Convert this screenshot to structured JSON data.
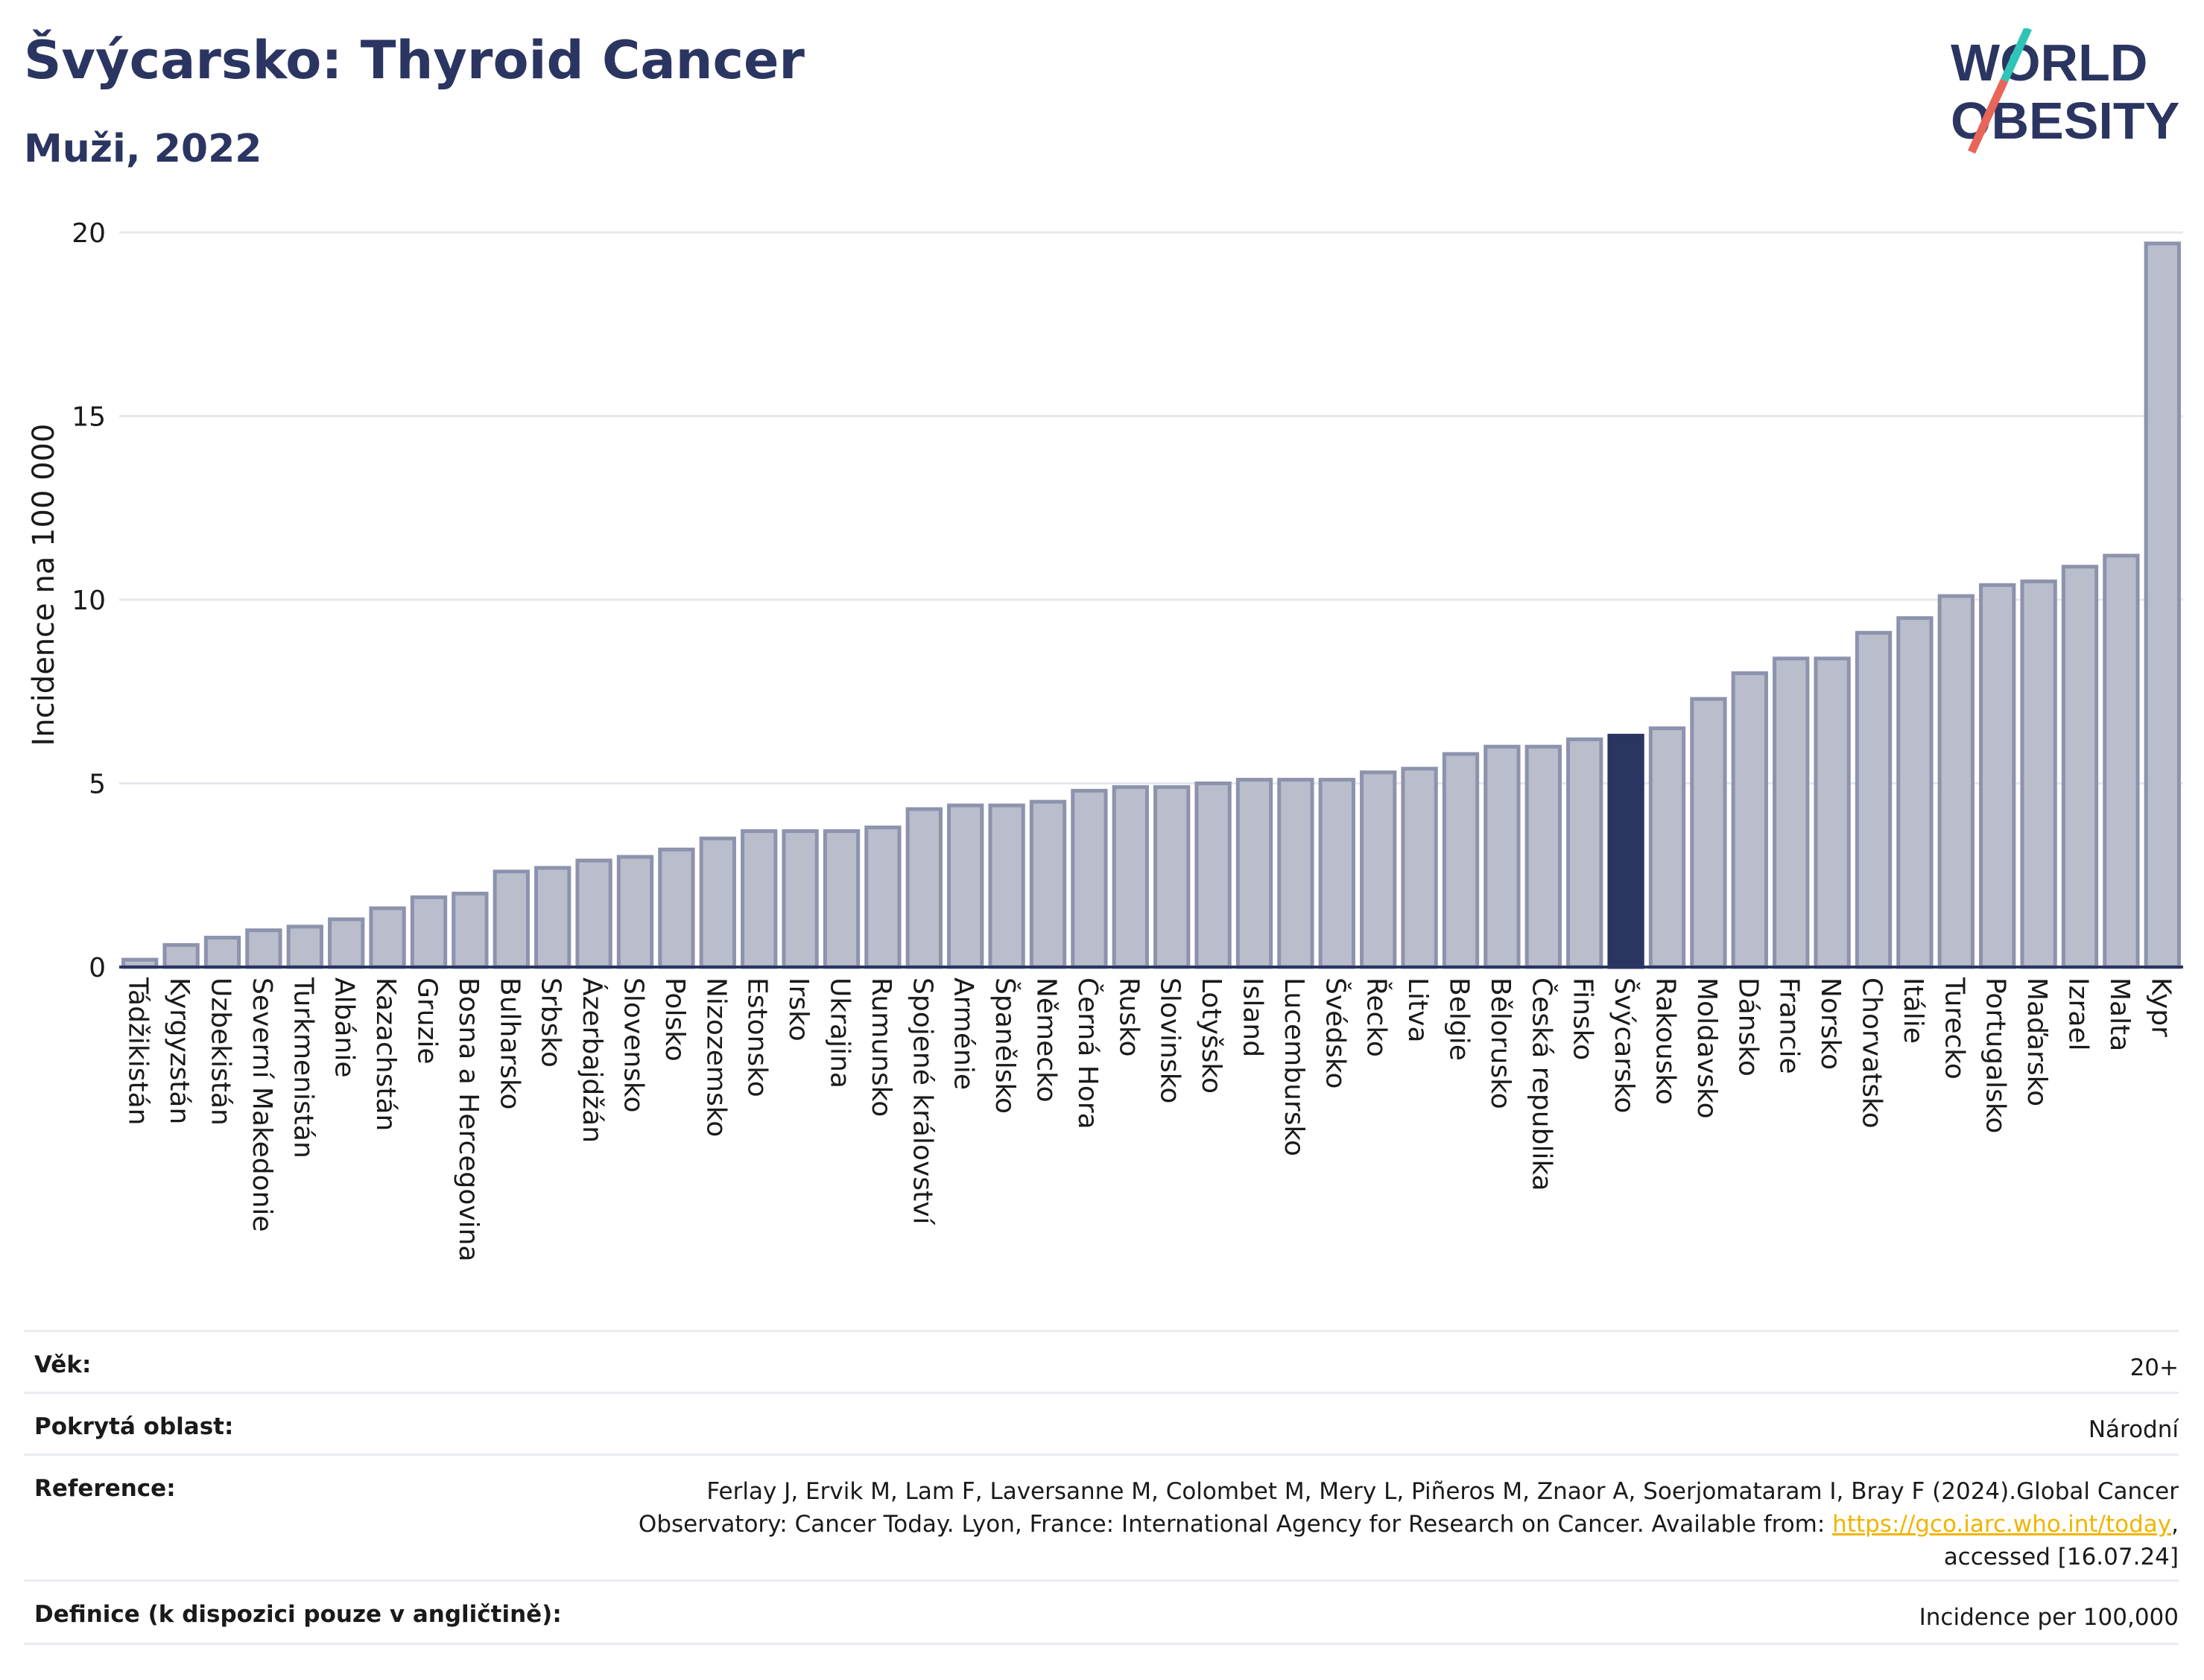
{
  "header": {
    "title": "Švýcarsko: Thyroid Cancer",
    "subtitle": "Muži, 2022"
  },
  "logo": {
    "line1": "WORLD",
    "line2": "OBESITY",
    "colors": {
      "text": "#2b3561",
      "slash_teal": "#2ec4b6",
      "slash_red": "#e8655a"
    }
  },
  "chart_data": {
    "type": "bar",
    "ylabel": "Incidence na 100 000",
    "xlabel": "",
    "ylim": [
      0,
      20
    ],
    "yticks": [
      0,
      5,
      10,
      15,
      20
    ],
    "grid": true,
    "highlight": "Švýcarsko",
    "colors": {
      "bar": "#b9bdcc",
      "bar_border": "#8d93ad",
      "highlight": "#2b3561",
      "grid": "#e6e8ee"
    },
    "categories": [
      "Tádžikistán",
      "Kyrgyzstán",
      "Uzbekistán",
      "Severní Makedonie",
      "Turkmenistán",
      "Albánie",
      "Kazachstán",
      "Gruzie",
      "Bosna a Hercegovina",
      "Bulharsko",
      "Srbsko",
      "Ázerbajdžán",
      "Slovensko",
      "Polsko",
      "Nizozemsko",
      "Estonsko",
      "Irsko",
      "Ukrajina",
      "Rumunsko",
      "Spojené království",
      "Arménie",
      "Španělsko",
      "Německo",
      "Černá Hora",
      "Rusko",
      "Slovinsko",
      "Lotyšsko",
      "Island",
      "Lucembursko",
      "Švédsko",
      "Řecko",
      "Litva",
      "Belgie",
      "Bělorusko",
      "Česká republika",
      "Finsko",
      "Švýcarsko",
      "Rakousko",
      "Moldavsko",
      "Dánsko",
      "Francie",
      "Norsko",
      "Chorvatsko",
      "Itálie",
      "Turecko",
      "Portugalsko",
      "Maďarsko",
      "Izrael",
      "Malta",
      "Kypr"
    ],
    "values": [
      0.2,
      0.6,
      0.8,
      1.0,
      1.1,
      1.3,
      1.6,
      1.9,
      2.0,
      2.6,
      2.7,
      2.9,
      3.0,
      3.2,
      3.5,
      3.7,
      3.7,
      3.7,
      3.8,
      4.3,
      4.4,
      4.4,
      4.5,
      4.8,
      4.9,
      4.9,
      5.0,
      5.1,
      5.1,
      5.1,
      5.3,
      5.4,
      5.8,
      6.0,
      6.0,
      6.2,
      6.3,
      6.5,
      7.3,
      8.0,
      8.4,
      8.4,
      9.1,
      9.5,
      10.1,
      10.4,
      10.5,
      10.9,
      11.2,
      19.7
    ]
  },
  "info": [
    {
      "label": "Věk:",
      "value": "20+"
    },
    {
      "label": "Pokrytá oblast:",
      "value": "Národní"
    },
    {
      "label": "Reference:",
      "value_pre": "Ferlay J, Ervik M, Lam F, Laversanne M, Colombet M, Mery L, Piñeros M, Znaor A, Soerjomataram I, Bray F (2024).Global Cancer Observatory: Cancer Today. Lyon, France: International Agency for Research on Cancer. Available from: ",
      "link": "https://gco.iarc.who.int/today",
      "value_post": ", accessed [16.07.24]"
    },
    {
      "label": "Definice (k dispozici pouze v angličtině):",
      "value": "Incidence per 100,000"
    }
  ]
}
